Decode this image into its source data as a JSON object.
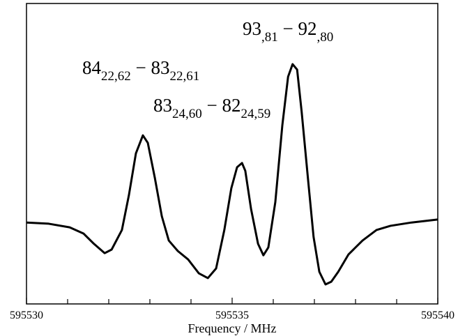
{
  "chart_data": {
    "type": "line",
    "x_label": "Frequency / MHz",
    "xlim": [
      595530,
      595540
    ],
    "xticks": [
      595530,
      595535,
      595540
    ],
    "xminor_ticks": [
      595531,
      595532,
      595533,
      595534,
      595536,
      595537,
      595538,
      595539
    ],
    "ylim": [
      0,
      100
    ],
    "color": "#000000",
    "x": [
      595530,
      595530.54,
      595531.05,
      595531.39,
      595531.64,
      595531.9,
      595532.07,
      595532.32,
      595532.49,
      595532.66,
      595532.83,
      595532.95,
      595533.12,
      595533.29,
      595533.46,
      595533.68,
      595533.93,
      595534.19,
      595534.41,
      595534.61,
      595534.81,
      595534.98,
      595535.12,
      595535.24,
      595535.32,
      595535.46,
      595535.63,
      595535.76,
      595535.88,
      595536.05,
      595536.22,
      595536.36,
      595536.47,
      595536.58,
      595536.69,
      595536.85,
      595536.98,
      595537.12,
      595537.27,
      595537.41,
      595537.58,
      595537.83,
      595538.17,
      595538.51,
      595538.85,
      595539.36,
      595540
    ],
    "values": [
      27.1,
      26.7,
      25.5,
      23.4,
      20.0,
      16.9,
      18.1,
      24.6,
      36.2,
      50.1,
      56.1,
      53.6,
      42.0,
      29.2,
      21.1,
      17.6,
      14.8,
      10.2,
      8.6,
      11.8,
      24.6,
      38.5,
      45.5,
      46.9,
      44.3,
      31.6,
      20.0,
      16.2,
      18.8,
      33.9,
      59.4,
      75.6,
      79.8,
      78.0,
      64.0,
      40.8,
      22.3,
      10.7,
      6.5,
      7.4,
      10.7,
      16.5,
      21.1,
      24.6,
      26.0,
      27.1,
      28.1
    ],
    "annotations": [
      {
        "parts": [
          {
            "text": "84",
            "sub": "22,62"
          },
          {
            "text": " − 83",
            "sub": "22,61"
          }
        ]
      },
      {
        "parts": [
          {
            "text": "83",
            "sub": "24,60"
          },
          {
            "text": " − 82",
            "sub": "24,59"
          }
        ]
      },
      {
        "parts": [
          {
            "text": "93",
            "sub": ",81"
          },
          {
            "text": " − 92",
            "sub": ",80"
          }
        ]
      }
    ]
  }
}
